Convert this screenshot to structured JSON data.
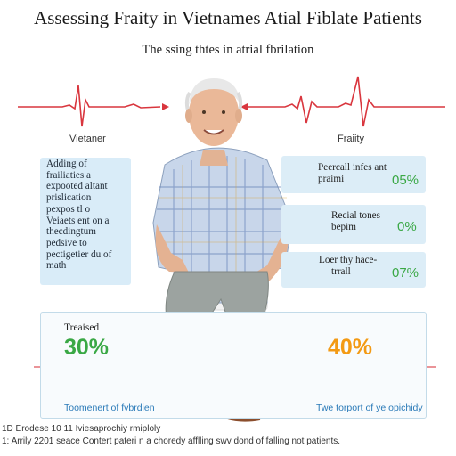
{
  "header": {
    "title": "Assessing Fraity in Vietnames Atial Fiblate Patients",
    "subtitle": "The ssing thtes in atrial fbrilation"
  },
  "labels": {
    "left": "Vietaner",
    "right": "Fraiity"
  },
  "left_box": {
    "lines": [
      "Adding of",
      "frailiaties a",
      "expooted altant",
      "prislication",
      "pexpos tl o",
      "Veiaets ent on a",
      "thecdingtum",
      "pedsive to",
      "pectigetier du of",
      "math"
    ]
  },
  "right_boxes": [
    {
      "label_lines": [
        "Peercall infes ant",
        "praimi"
      ],
      "value": "05%"
    },
    {
      "label_lines": [
        "Recial tones",
        "bepim"
      ],
      "value": "0%"
    },
    {
      "label_lines": [
        "Loer thy hace-",
        "trrall"
      ],
      "value": "07%"
    }
  ],
  "bottom": {
    "treated_label": "Treaised",
    "left_value": "30%",
    "right_value": "40%",
    "left_caption": "Toomenert of fvbrdien",
    "right_caption": "Twe torport of ye opichidy"
  },
  "footnotes": [
    "1D Erodese 10 11 Iviesaprochiy rmiploly",
    "1: Arrily 2201 seace Contert pateri n a choredy afflling swv dond of falling not patients."
  ],
  "colors": {
    "ecg": "#d9363e",
    "green": "#3aa845",
    "orange": "#f39a14",
    "box": "#d9ecf8"
  }
}
